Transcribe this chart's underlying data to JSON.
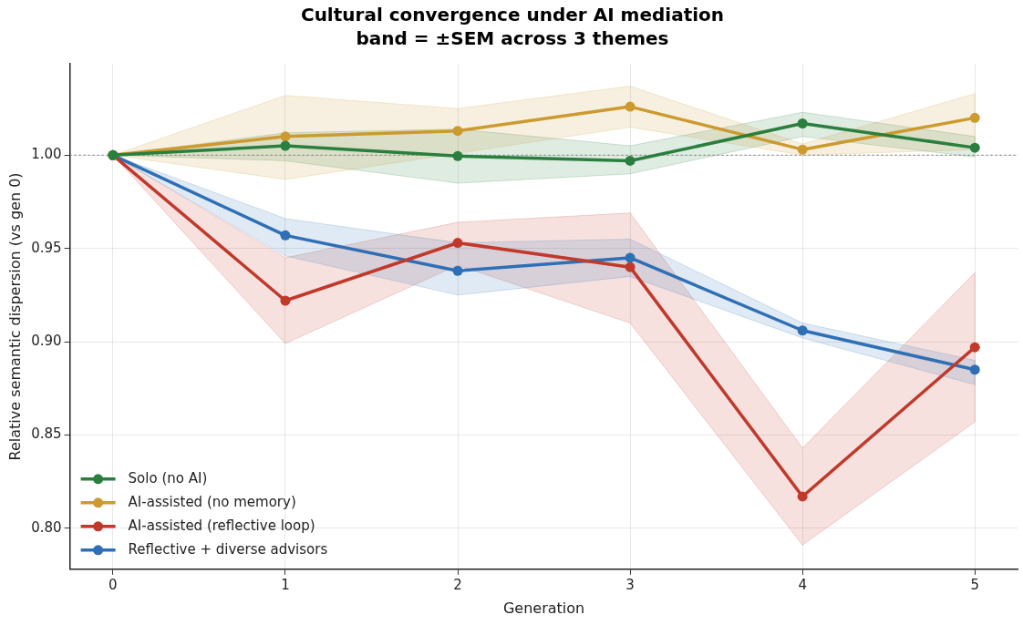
{
  "chart_data": {
    "type": "line",
    "title": "Cultural convergence under AI mediation",
    "subtitle": "band = ±SEM across 3 themes",
    "xlabel": "Generation",
    "ylabel": "Relative semantic dispersion (vs gen 0)",
    "x": [
      0,
      1,
      2,
      3,
      4,
      5
    ],
    "series": [
      {
        "name": "Solo (no AI)",
        "color": "#2a7f3e",
        "values": [
          1.0,
          1.005,
          0.9995,
          0.997,
          1.017,
          1.004
        ],
        "lower": [
          1.0,
          0.997,
          0.985,
          0.99,
          1.01,
          0.999
        ],
        "upper": [
          1.0,
          1.012,
          1.014,
          1.005,
          1.023,
          1.01
        ]
      },
      {
        "name": "AI-assisted (no memory)",
        "color": "#cc9a2e",
        "values": [
          1.0,
          1.01,
          1.013,
          1.026,
          1.003,
          1.02
        ],
        "lower": [
          1.0,
          0.987,
          1.001,
          1.015,
          1.0,
          1.003
        ],
        "upper": [
          1.0,
          1.032,
          1.025,
          1.037,
          1.006,
          1.033
        ]
      },
      {
        "name": "AI-assisted (reflective loop)",
        "color": "#c0392b",
        "values": [
          1.0,
          0.922,
          0.953,
          0.94,
          0.817,
          0.897
        ],
        "lower": [
          1.0,
          0.899,
          0.941,
          0.91,
          0.791,
          0.857
        ],
        "upper": [
          1.0,
          0.945,
          0.964,
          0.969,
          0.843,
          0.937
        ]
      },
      {
        "name": "Reflective + diverse advisors",
        "color": "#2e6fb5",
        "values": [
          1.0,
          0.957,
          0.938,
          0.945,
          0.906,
          0.885
        ],
        "lower": [
          1.0,
          0.946,
          0.925,
          0.935,
          0.902,
          0.877
        ],
        "upper": [
          1.0,
          0.966,
          0.953,
          0.955,
          0.91,
          0.89
        ]
      }
    ],
    "xlim": [
      -0.25,
      5.25
    ],
    "xticks": [
      0,
      1,
      2,
      3,
      4,
      5
    ],
    "ylim": [
      0.778,
      1.049
    ],
    "yticks": [
      {
        "value": 0.8,
        "label": "0.80"
      },
      {
        "value": 0.85,
        "label": "0.85"
      },
      {
        "value": 0.9,
        "label": "0.90"
      },
      {
        "value": 0.95,
        "label": "0.95"
      },
      {
        "value": 1.0,
        "label": "1.00"
      }
    ],
    "ref_lines": [
      {
        "axis": "y",
        "value": 1.0,
        "color": "#888888",
        "line_style": "dotted"
      }
    ],
    "grid": true,
    "legend": "bottom left",
    "marker": "circle",
    "line_style": "solid"
  }
}
